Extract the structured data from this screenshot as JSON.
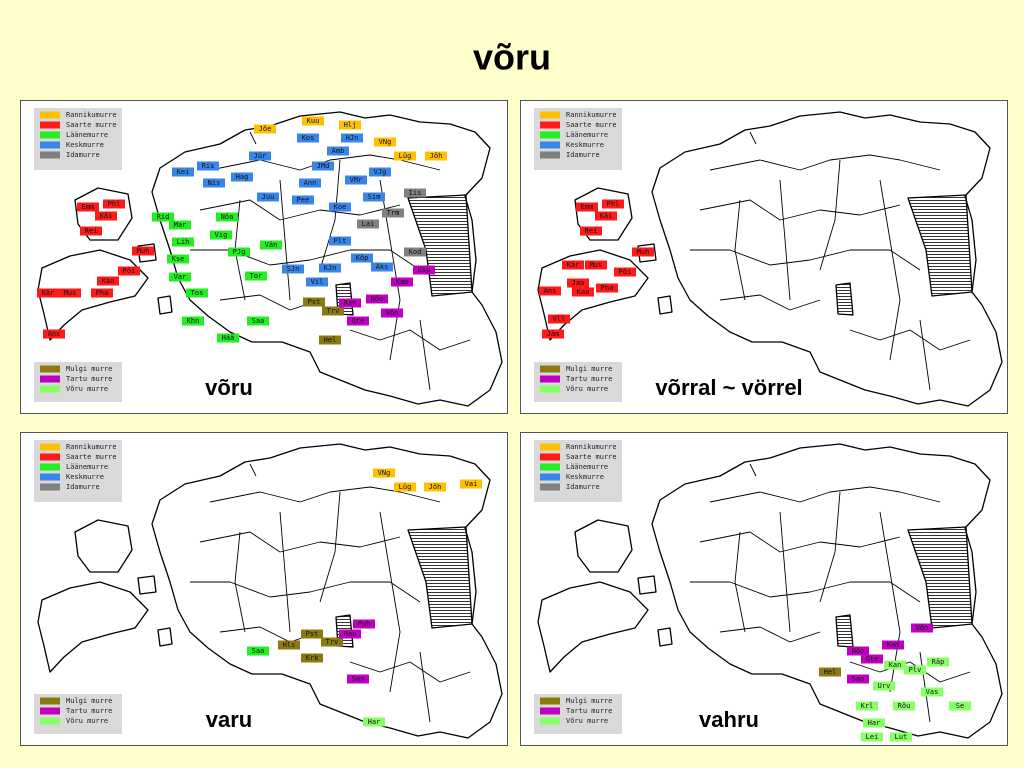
{
  "title": "võru",
  "legend_top": [
    {
      "label": "Rannikumurre",
      "color": "#ffc000"
    },
    {
      "label": "Saarte murre",
      "color": "#ff1a1a"
    },
    {
      "label": "Läänemurre",
      "color": "#22ee22"
    },
    {
      "label": "Keskmurre",
      "color": "#3a86e8"
    },
    {
      "label": "Idamurre",
      "color": "#808080"
    }
  ],
  "legend_bottom": [
    {
      "label": "Mulgi murre",
      "color": "#8a7a10"
    },
    {
      "label": "Tartu murre",
      "color": "#c000c0"
    },
    {
      "label": "Võru murre",
      "color": "#88ff66"
    }
  ],
  "panels": [
    {
      "caption": "võru",
      "groups": [
        {
          "color": "#ffc000",
          "labels": [
            "Kuu",
            "Hlj",
            "Jõe",
            "VNg",
            "Lüg",
            "Jõh"
          ]
        },
        {
          "color": "#ff1a1a",
          "labels": [
            "Emm",
            "Phl",
            "Käi",
            "Rei",
            "Muh",
            "Pöi",
            "Kaa",
            "Kär",
            "Mus",
            "Pha",
            "Ans"
          ]
        },
        {
          "color": "#22ee22",
          "labels": [
            "Rid",
            "Mar",
            "Nõa",
            "Vig",
            "Lih",
            "Kse",
            "PJg",
            "Vän",
            "Var",
            "Tor",
            "Tos",
            "Khn",
            "Saa",
            "Hää"
          ]
        },
        {
          "color": "#3a86e8",
          "labels": [
            "Kos",
            "HJn",
            "Jür",
            "Amb",
            "JMd",
            "Ris",
            "Kei",
            "Hag",
            "VJg",
            "VMr",
            "Nis",
            "Ann",
            "Juu",
            "Pee",
            "Sim",
            "Koe",
            "Plt",
            "Kõp",
            "SJn",
            "KJn",
            "Äks",
            "Vil"
          ]
        },
        {
          "color": "#808080",
          "labels": [
            "Iis",
            "Trm",
            "Lai",
            "Kod"
          ]
        },
        {
          "color": "#8a7a10",
          "labels": [
            "Pst",
            "Trv",
            "Hel"
          ]
        },
        {
          "color": "#c000c0",
          "labels": [
            "Ksp",
            "Kam",
            "Ran",
            "Nõo",
            "Võn",
            "Ote"
          ]
        }
      ]
    },
    {
      "caption": "võrral ~ vörrel",
      "groups": [
        {
          "color": "#ff1a1a",
          "labels": [
            "Emm",
            "Phl",
            "Käi",
            "Rei",
            "Muh",
            "Pöi",
            "Kär",
            "Mus",
            "Pha",
            "Jaa",
            "Kaa",
            "Ans",
            "Vll",
            "Jäm"
          ]
        }
      ]
    },
    {
      "caption": "varu",
      "groups": [
        {
          "color": "#ffc000",
          "labels": [
            "VNg",
            "Lüg",
            "Jõh",
            "Vai"
          ]
        },
        {
          "color": "#22ee22",
          "labels": [
            "Saa"
          ]
        },
        {
          "color": "#8a7a10",
          "labels": [
            "Hls",
            "Pst",
            "Trv",
            "Krk"
          ]
        },
        {
          "color": "#c000c0",
          "labels": [
            "Puh",
            "Ran",
            "San"
          ]
        },
        {
          "color": "#88ff66",
          "labels": [
            "Har"
          ]
        }
      ]
    },
    {
      "caption": "vahru",
      "groups": [
        {
          "color": "#88ff66",
          "labels": [
            "Kan",
            "Plv",
            "Räp",
            "Urv",
            "Vas",
            "Se",
            "Krl",
            "Rõu",
            "Har",
            "Lei",
            "Lut"
          ]
        },
        {
          "color": "#c000c0",
          "labels": [
            "Nõo",
            "Ote",
            "Kam",
            "Võn",
            "San"
          ]
        },
        {
          "color": "#8a7a10",
          "labels": [
            "Hel"
          ]
        }
      ]
    }
  ]
}
